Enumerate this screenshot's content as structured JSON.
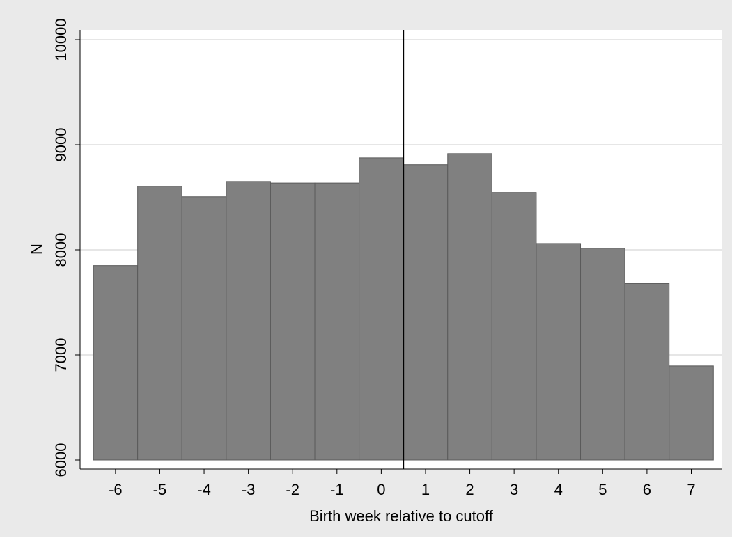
{
  "chart_data": {
    "type": "bar",
    "title": "",
    "xlabel": "Birth week relative to cutoff",
    "ylabel": "N",
    "categories": [
      "-6",
      "-5",
      "-4",
      "-3",
      "-2",
      "-1",
      "0",
      "1",
      "2",
      "3",
      "4",
      "5",
      "6",
      "7"
    ],
    "x": [
      -6,
      -5,
      -4,
      -3,
      -2,
      -1,
      0,
      1,
      2,
      3,
      4,
      5,
      6,
      7
    ],
    "values": [
      7850,
      8605,
      8505,
      8650,
      8635,
      8635,
      8875,
      8810,
      8915,
      8545,
      8060,
      8015,
      7680,
      6895
    ],
    "ylim": [
      6000,
      10000
    ],
    "yticks": [
      6000,
      7000,
      8000,
      9000,
      10000
    ],
    "xlim": [
      -6.8,
      7.7
    ],
    "cutoff_line_x": 0.5,
    "grid": true,
    "legend": "none",
    "colors": {
      "background": "#eaeaea",
      "plot_area": "#ffffff",
      "bar_fill": "#808080",
      "bar_edge": "#5a5a5a",
      "grid": "#e6e6e6",
      "cutoff_line": "#000000"
    }
  }
}
